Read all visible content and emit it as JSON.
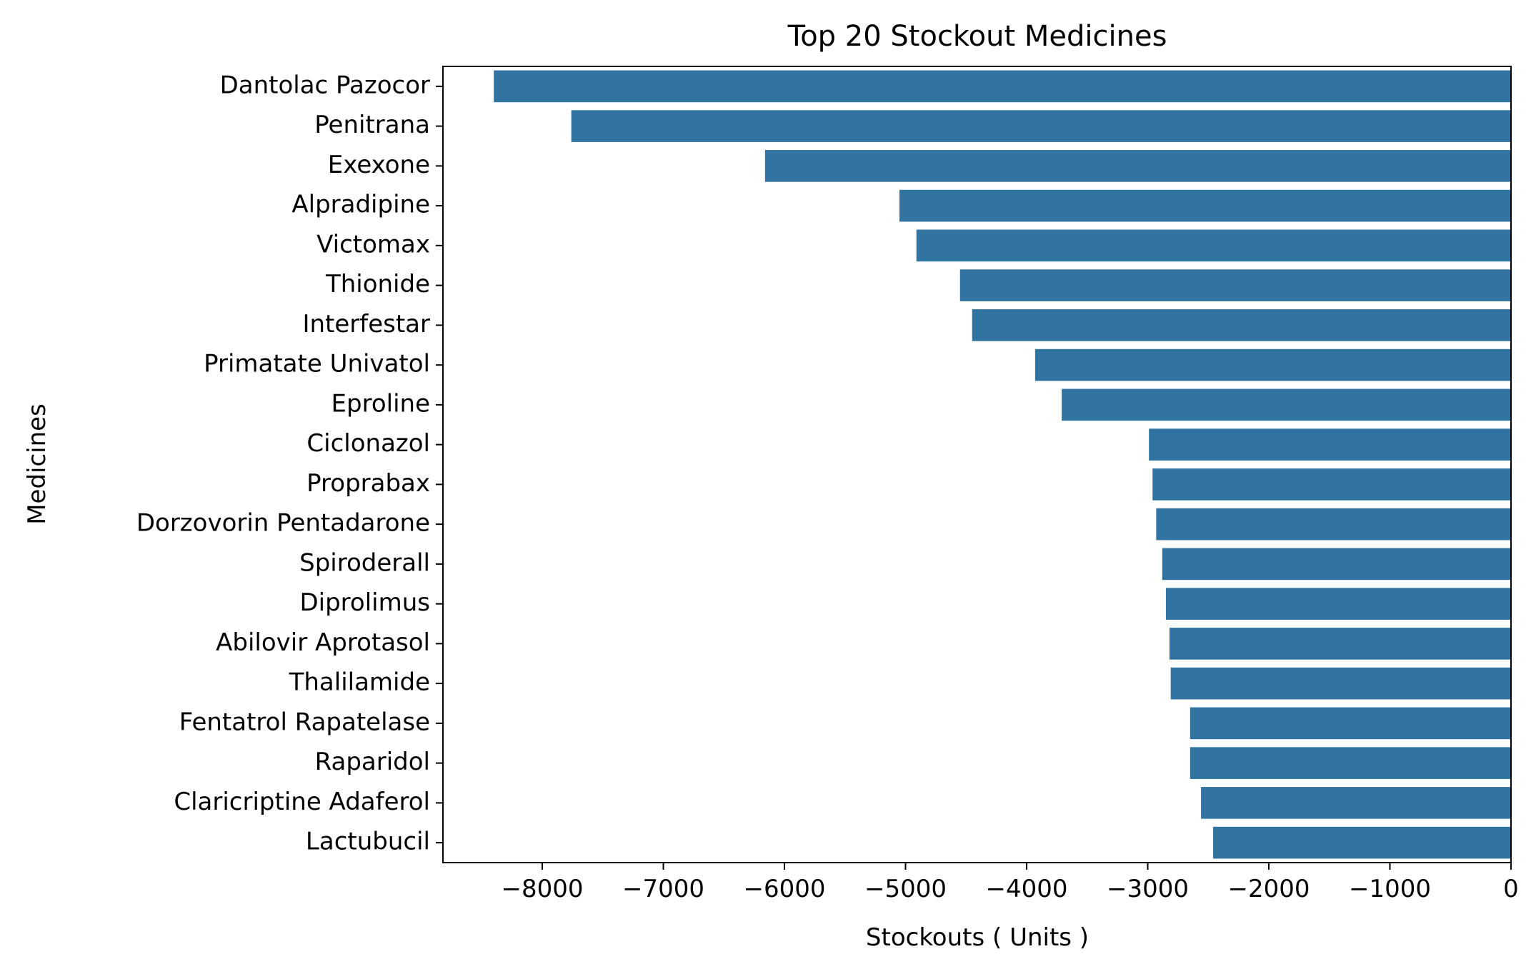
{
  "chart_data": {
    "type": "bar",
    "orientation": "horizontal",
    "title": "Top 20 Stockout Medicines",
    "xlabel": "Stockouts ( Units )",
    "ylabel": "Medicines",
    "xlim": [
      -8820,
      0
    ],
    "xticks": [
      -8000,
      -7000,
      -6000,
      -5000,
      -4000,
      -3000,
      -2000,
      -1000,
      0
    ],
    "xtick_labels": [
      "−8000",
      "−7000",
      "−6000",
      "−5000",
      "−4000",
      "−3000",
      "−2000",
      "−1000",
      "0"
    ],
    "grid": false,
    "bar_color": "#3274a1",
    "categories": [
      "Dantolac Pazocor",
      "Penitrana",
      "Exexone",
      "Alpradipine",
      "Victomax",
      "Thionide",
      "Interfestar",
      "Primatate Univatol",
      "Eproline",
      "Ciclonazol",
      "Proprabax",
      "Dorzovorin Pentadarone",
      "Spiroderall",
      "Diprolimus",
      "Abilovir Aprotasol",
      "Thalilamide",
      "Fentatrol Rapatelase",
      "Raparidol",
      "Claricriptine Adaferol",
      "Lactubucil"
    ],
    "values": [
      -8400,
      -7760,
      -6160,
      -5050,
      -4910,
      -4550,
      -4450,
      -3930,
      -3710,
      -2990,
      -2960,
      -2930,
      -2880,
      -2850,
      -2820,
      -2810,
      -2650,
      -2650,
      -2560,
      -2460
    ]
  }
}
